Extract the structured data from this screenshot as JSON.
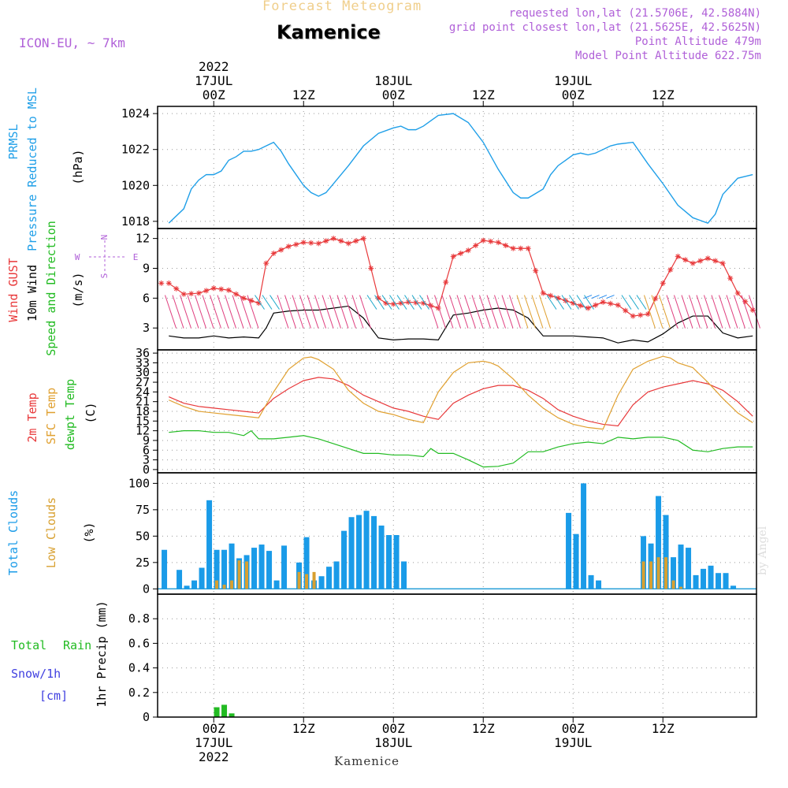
{
  "header": {
    "title_small": "Forecast Meteogram",
    "location": "Kamenice",
    "model": "ICON-EU, ~ 7km",
    "requested": "requested lon,lat (21.5706E, 42.5884N)",
    "closest": "grid point closest lon,lat (21.5625E, 42.5625N)",
    "point_alt": "Point Altitude 479m",
    "model_alt": "Model Point Altitude 622.75m",
    "footer_location": "Kamenice",
    "watermark": "by Angel"
  },
  "colors": {
    "pressure": "#1f9fe8",
    "gust": "#e8383a",
    "wind": "#000000",
    "temp": "#e8383a",
    "sfc": "#e0a030",
    "dewpt": "#22bb22",
    "total_clouds": "#1a9be8",
    "low_clouds": "#d8a030",
    "rain": "#22bb22",
    "snow": "#4040e0",
    "header_purple": "#b060d8"
  },
  "time_axis": {
    "top_labels": [
      {
        "t": 0,
        "lines": [
          "2022",
          "17JUL",
          "00Z"
        ]
      },
      {
        "t": 12,
        "lines": [
          "12Z"
        ]
      },
      {
        "t": 24,
        "lines": [
          "18JUL",
          "00Z"
        ]
      },
      {
        "t": 36,
        "lines": [
          "12Z"
        ]
      },
      {
        "t": 48,
        "lines": [
          "19JUL",
          "00Z"
        ]
      },
      {
        "t": 60,
        "lines": [
          "12Z"
        ]
      }
    ],
    "bottom_labels": [
      {
        "t": 0,
        "lines": [
          "00Z",
          "17JUL",
          "2022"
        ]
      },
      {
        "t": 12,
        "lines": [
          "12Z"
        ]
      },
      {
        "t": 24,
        "lines": [
          "00Z",
          "18JUL"
        ]
      },
      {
        "t": 36,
        "lines": [
          "12Z"
        ]
      },
      {
        "t": 48,
        "lines": [
          "00Z",
          "19JUL"
        ]
      },
      {
        "t": 60,
        "lines": [
          "12Z"
        ]
      }
    ]
  },
  "panels": {
    "pressure": {
      "labels": [
        "PRMSL",
        "Pressure Reduced to MSL",
        "(hPa)"
      ]
    },
    "wind": {
      "labels": [
        "Wind GUST",
        "10m Wind",
        "Speed and Direction",
        "(m/s)"
      ],
      "compass": [
        "N",
        "S",
        "W",
        "E"
      ]
    },
    "temp": {
      "labels": [
        "2m Temp",
        "SFC Temp",
        "dewpt Temp",
        "(C)"
      ]
    },
    "clouds": {
      "labels": [
        "Total Clouds",
        "Low Clouds",
        "(%)"
      ]
    },
    "precip": {
      "labels": [
        "Total",
        "Rain",
        "Snow/1h",
        "[cm]",
        "1hr Precip (mm)"
      ]
    }
  },
  "chart_data": [
    {
      "type": "line",
      "title": "PRMSL Pressure Reduced to MSL",
      "ylabel": "(hPa)",
      "ylim": [
        1017.6,
        1024.4
      ],
      "yticks": [
        1018,
        1020,
        1022,
        1024
      ],
      "grid": true,
      "series": [
        {
          "name": "PRMSL",
          "x": [
            -6,
            -4,
            -3,
            -2,
            -1,
            0,
            1,
            2,
            3,
            4,
            5,
            6,
            7,
            8,
            9,
            10,
            12,
            13,
            14,
            15,
            16,
            18,
            20,
            22,
            24,
            25,
            26,
            27,
            28,
            29,
            30,
            32,
            34,
            36,
            38,
            40,
            41,
            42,
            44,
            45,
            46,
            47,
            48,
            49,
            50,
            51,
            52,
            53,
            54,
            56,
            58,
            60,
            62,
            64,
            66,
            67,
            68,
            70,
            72
          ],
          "values": [
            1017.9,
            1018.7,
            1019.8,
            1020.3,
            1020.6,
            1020.6,
            1020.8,
            1021.4,
            1021.6,
            1021.9,
            1021.9,
            1022.0,
            1022.2,
            1022.4,
            1021.9,
            1021.2,
            1020.0,
            1019.6,
            1019.4,
            1019.6,
            1020.1,
            1021.1,
            1022.2,
            1022.9,
            1023.2,
            1023.3,
            1023.1,
            1023.1,
            1023.3,
            1023.6,
            1023.9,
            1024.0,
            1023.5,
            1022.4,
            1020.9,
            1019.6,
            1019.3,
            1019.3,
            1019.8,
            1020.6,
            1021.1,
            1021.4,
            1021.7,
            1021.8,
            1021.7,
            1021.8,
            1022.0,
            1022.2,
            1022.3,
            1022.4,
            1021.2,
            1020.1,
            1018.9,
            1018.2,
            1017.9,
            1018.4,
            1019.5,
            1020.4,
            1020.6
          ]
        }
      ]
    },
    {
      "type": "line",
      "title": "Wind GUST / 10m Wind Speed and Direction",
      "ylabel": "(m/s)",
      "ylim": [
        0.8,
        13
      ],
      "yticks": [
        3,
        6,
        9,
        12
      ],
      "grid": true,
      "series": [
        {
          "name": "Wind GUST",
          "x": [
            -6,
            -4,
            -2,
            0,
            2,
            4,
            6,
            7,
            8,
            10,
            12,
            14,
            16,
            18,
            20,
            21,
            22,
            23,
            24,
            26,
            28,
            30,
            32,
            34,
            36,
            38,
            40,
            42,
            44,
            46,
            48,
            50,
            52,
            54,
            56,
            58,
            60,
            62,
            64,
            66,
            68,
            70,
            72
          ],
          "values": [
            7.5,
            6.4,
            6.5,
            7.0,
            6.8,
            6.0,
            5.5,
            9.5,
            10.5,
            11.2,
            11.6,
            11.5,
            12.0,
            11.5,
            12.0,
            9.0,
            6.0,
            5.5,
            5.4,
            5.6,
            5.5,
            5.0,
            10.2,
            10.8,
            11.8,
            11.6,
            11.0,
            11.0,
            6.5,
            6.0,
            5.5,
            5.0,
            5.6,
            5.3,
            4.2,
            4.4,
            7.5,
            10.2,
            9.5,
            10.0,
            9.5,
            6.5,
            4.8
          ]
        },
        {
          "name": "10m Wind",
          "x": [
            -6,
            -4,
            -2,
            0,
            2,
            4,
            6,
            7,
            8,
            10,
            12,
            14,
            16,
            18,
            20,
            22,
            24,
            26,
            28,
            30,
            32,
            34,
            36,
            38,
            40,
            42,
            44,
            46,
            48,
            50,
            52,
            54,
            56,
            58,
            60,
            62,
            64,
            66,
            68,
            70,
            72
          ],
          "values": [
            2.2,
            2.0,
            2.0,
            2.2,
            2.0,
            2.1,
            2.0,
            3.0,
            4.5,
            4.7,
            4.8,
            4.8,
            5.0,
            5.2,
            4.0,
            2.0,
            1.8,
            1.9,
            1.9,
            1.8,
            4.3,
            4.5,
            4.8,
            5.0,
            4.8,
            4.0,
            2.2,
            2.2,
            2.2,
            2.1,
            2.0,
            1.5,
            1.8,
            1.6,
            2.4,
            3.5,
            4.2,
            4.2,
            2.5,
            2.0,
            2.2
          ]
        }
      ]
    },
    {
      "type": "line",
      "title": "2m Temp / SFC Temp / dewpt Temp",
      "ylabel": "(C)",
      "ylim": [
        -1,
        37
      ],
      "yticks": [
        0,
        3,
        6,
        9,
        12,
        15,
        18,
        21,
        24,
        27,
        30,
        33,
        36
      ],
      "grid": true,
      "series": [
        {
          "name": "2m Temp",
          "x": [
            -6,
            -4,
            -2,
            0,
            2,
            4,
            6,
            8,
            10,
            12,
            14,
            16,
            18,
            20,
            22,
            24,
            26,
            28,
            30,
            32,
            34,
            36,
            38,
            40,
            42,
            44,
            46,
            48,
            50,
            52,
            54,
            56,
            58,
            60,
            62,
            64,
            66,
            68,
            70,
            72
          ],
          "values": [
            22.5,
            20.5,
            19.5,
            19.0,
            18.5,
            18.0,
            17.5,
            22.0,
            25.0,
            27.5,
            28.5,
            28.0,
            26.0,
            23.0,
            21.0,
            19.0,
            18.0,
            16.5,
            15.5,
            20.5,
            23.0,
            25.0,
            26.0,
            26.0,
            24.5,
            22.0,
            18.5,
            16.5,
            15.0,
            14.0,
            13.5,
            20.0,
            24.0,
            25.5,
            26.5,
            27.5,
            26.5,
            24.5,
            21.0,
            16.5
          ]
        },
        {
          "name": "SFC Temp",
          "x": [
            -6,
            -4,
            -2,
            0,
            2,
            4,
            6,
            8,
            10,
            12,
            13,
            14,
            16,
            18,
            20,
            22,
            24,
            26,
            28,
            30,
            32,
            34,
            36,
            37,
            38,
            40,
            42,
            44,
            46,
            48,
            50,
            52,
            54,
            56,
            58,
            60,
            61,
            62,
            64,
            66,
            68,
            70,
            72
          ],
          "values": [
            21.5,
            19.5,
            18.0,
            17.5,
            17.0,
            16.5,
            16.0,
            24.0,
            31.0,
            34.5,
            34.8,
            34.0,
            31.0,
            24.5,
            20.5,
            18.0,
            17.0,
            15.5,
            14.5,
            24.0,
            30.0,
            33.0,
            33.5,
            33.0,
            32.0,
            28.0,
            23.0,
            19.0,
            16.0,
            14.0,
            13.0,
            12.5,
            23.0,
            31.0,
            33.5,
            35.0,
            34.5,
            33.0,
            31.5,
            27.0,
            22.0,
            17.5,
            14.5
          ]
        },
        {
          "name": "dewpt Temp",
          "x": [
            -6,
            -4,
            -2,
            0,
            2,
            4,
            5,
            6,
            8,
            10,
            12,
            14,
            16,
            18,
            20,
            22,
            24,
            26,
            28,
            29,
            30,
            32,
            34,
            36,
            38,
            40,
            42,
            44,
            46,
            48,
            50,
            52,
            54,
            56,
            58,
            60,
            62,
            64,
            66,
            68,
            70,
            72
          ],
          "values": [
            11.5,
            12.0,
            12.0,
            11.5,
            11.5,
            10.5,
            12.0,
            9.5,
            9.5,
            10.0,
            10.5,
            9.5,
            8.0,
            6.5,
            5.0,
            5.0,
            4.5,
            4.5,
            4.0,
            6.5,
            5.0,
            5.0,
            3.0,
            0.8,
            1.0,
            2.0,
            5.5,
            5.5,
            7.0,
            8.0,
            8.5,
            8.0,
            10.0,
            9.5,
            10.0,
            10.0,
            9.0,
            6.0,
            5.5,
            6.5,
            7.0,
            7.0
          ]
        }
      ]
    },
    {
      "type": "bar",
      "title": "Total Clouds / Low Clouds",
      "ylabel": "(%)",
      "ylim": [
        -5,
        110
      ],
      "yticks": [
        0,
        25,
        50,
        75,
        100
      ],
      "grid": true,
      "series": [
        {
          "name": "Total Clouds",
          "x": [
            -6.6,
            -4.6,
            -3.6,
            -2.6,
            -1.6,
            -0.6,
            0.4,
            1.4,
            2.4,
            3.4,
            4.4,
            5.4,
            6.4,
            7.4,
            8.4,
            9.4,
            11.4,
            12.4,
            13.4,
            14.4,
            15.4,
            16.4,
            17.4,
            18.4,
            19.4,
            20.4,
            21.4,
            22.4,
            23.4,
            24.4,
            25.4,
            26.4,
            27.4,
            47.4,
            48.4,
            49.4,
            50.4,
            51.4,
            57.4,
            58.4,
            59.4,
            60.4,
            61.4,
            62.4,
            63.4,
            64.4,
            65.4,
            66.4,
            67.4,
            68.4,
            69.4,
            70.4
          ],
          "values": [
            37,
            18,
            3,
            8,
            20,
            84,
            37,
            37,
            43,
            29,
            32,
            39,
            42,
            36,
            8,
            41,
            25,
            49,
            8,
            12,
            21,
            26,
            55,
            68,
            70,
            74,
            69,
            60,
            51,
            51,
            26,
            0,
            0,
            72,
            52,
            100,
            13,
            8,
            50,
            43,
            88,
            70,
            30,
            42,
            39,
            13,
            19,
            22,
            15,
            15,
            3,
            0
          ]
        },
        {
          "name": "Low Clouds",
          "x": [
            0.4,
            1.4,
            2.4,
            3.4,
            4.4,
            11.4,
            12.4,
            13.4,
            57.4,
            58.4,
            59.4,
            60.4,
            61.4,
            62.4
          ],
          "values": [
            8,
            4,
            8,
            27,
            26,
            16,
            14,
            16,
            26,
            26,
            30,
            30,
            8,
            2
          ]
        }
      ]
    },
    {
      "type": "bar",
      "title": "1hr Precip",
      "ylabel": "1hr Precip (mm)",
      "ylim": [
        0,
        1.0
      ],
      "yticks": [
        0,
        0.2,
        0.4,
        0.6,
        0.8
      ],
      "grid": true,
      "series": [
        {
          "name": "Total Rain",
          "x": [
            0.4,
            1.4,
            2.4
          ],
          "values": [
            0.08,
            0.1,
            0.03
          ]
        },
        {
          "name": "Snow/1h",
          "x": [],
          "values": []
        }
      ]
    }
  ]
}
